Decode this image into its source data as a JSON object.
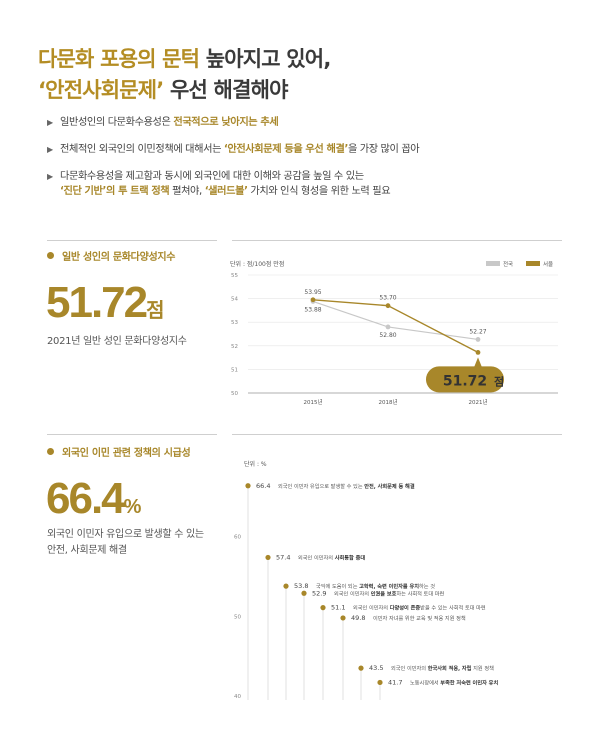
{
  "title": {
    "line1_a": "다문화 포용의 문턱",
    "line1_b": " 높아지고 있어,",
    "line2_a": "‘안전사회문제’",
    "line2_b": " 우선 해결해야"
  },
  "bullets": [
    {
      "pre": "일반성인의 다문화수용성은 ",
      "em": "전국적으로 낮아지는 추세",
      "post": ""
    },
    {
      "pre": "전체적인 외국인의 이민정책에 대해서는 ",
      "em": "‘안전사회문제 등을 우선 해결’",
      "post": "을 가장 많이 꼽아"
    },
    {
      "pre": "다문화수용성을 제고함과 동시에 외국인에 대한 이해와 공감을 높일 수 있는",
      "em": "‘진단 기반’",
      "em2": "의 투 트랙 정책",
      "mid": " 펼쳐야, ",
      "em3": "‘샐러드볼’",
      "post": " 가치와 인식 형성을 위한 노력 필요"
    }
  ],
  "section1": {
    "label": "일반 성인의 문화다양성지수",
    "big_value": "51.72",
    "big_unit": "점",
    "desc": "2021년 일반 성인 문화다양성지수"
  },
  "section2": {
    "label": "외국인 이민 관련 정책의 시급성",
    "big_value": "66.4",
    "big_unit": "%",
    "desc_line1": "외국인 이민자 유입으로 발생할 수 있는",
    "desc_line2": "안전, 사회문제 해결"
  },
  "colors": {
    "accent": "#a8872a",
    "national": "#c8c8c8"
  },
  "chart_data": [
    {
      "type": "line",
      "unit_label": "단위 : 점/100점 만점",
      "categories": [
        "2015년",
        "2018년",
        "2021년"
      ],
      "y_ticks": [
        50,
        51,
        52,
        53,
        54,
        55
      ],
      "ylim": [
        50,
        55
      ],
      "series": [
        {
          "name": "전국",
          "values": [
            53.88,
            52.8,
            52.27
          ],
          "labels": [
            "53.88",
            "52.80",
            "52.27"
          ],
          "color": "#c8c8c8"
        },
        {
          "name": "서울",
          "values": [
            53.95,
            53.7,
            51.72
          ],
          "labels": [
            "53.95",
            "53.70",
            ""
          ],
          "color": "#a8872a"
        }
      ],
      "callout": {
        "value": "51.72",
        "unit": "점"
      },
      "legend": "top-right"
    },
    {
      "type": "scatter",
      "unit_label": "단위 : %",
      "y_ticks": [
        40,
        50,
        60
      ],
      "ylim": [
        40,
        67.5
      ],
      "points": [
        {
          "value": 66.4,
          "label": "66.4",
          "text": "외국인 이민자 유입으로 발생할 수 있는 ",
          "bold": "안전, 사회문제 등 해결"
        },
        {
          "value": 57.4,
          "label": "57.4",
          "text": "외국인 이민자의 ",
          "bold": "사회통합 증대"
        },
        {
          "value": 53.8,
          "label": "53.8",
          "text": "국익에 도움이 되는 ",
          "bold": "고학력, 숙련 이민자를 유치",
          "post": "하는 것"
        },
        {
          "value": 52.9,
          "label": "52.9",
          "text": "외국인 이민자의 ",
          "bold": "인권을 보호",
          "post": "하는 사회적 토대 마련"
        },
        {
          "value": 51.1,
          "label": "51.1",
          "text": "외국인 이민자의 ",
          "bold": "다양성이 존중",
          "post": "받을 수 있는 사회적 토대 마련"
        },
        {
          "value": 49.8,
          "label": "49.8",
          "text": "이민자 자녀를 위한 교육 및 적응 지원 정책"
        },
        {
          "value": 43.5,
          "label": "43.5",
          "text": "외국인 이민자의 ",
          "bold": "한국사회 적응, 자립",
          "post": " 지원 정책"
        },
        {
          "value": 41.7,
          "label": "41.7",
          "text": "노동시장에서 ",
          "bold": "부족한 저숙련 이민자 유치"
        }
      ]
    }
  ]
}
